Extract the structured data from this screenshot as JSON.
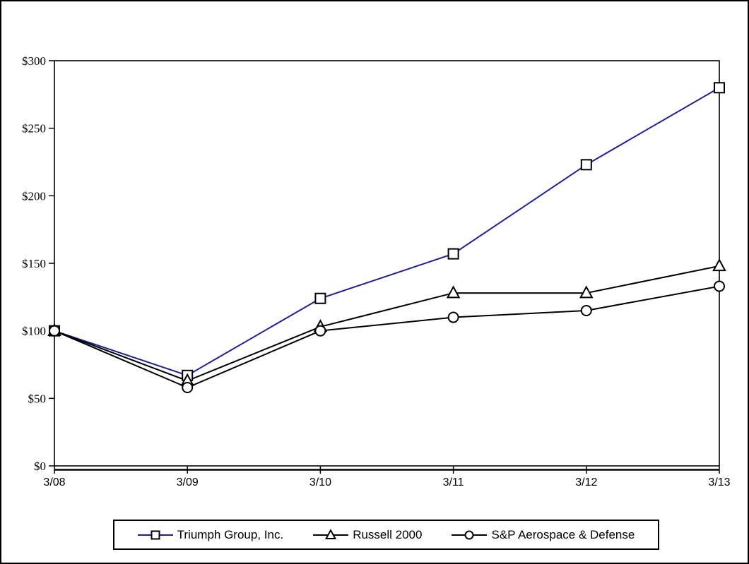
{
  "chart_data": {
    "type": "line",
    "title": "",
    "categories": [
      "3/08",
      "3/09",
      "3/10",
      "3/11",
      "3/12",
      "3/13"
    ],
    "series": [
      {
        "name": "Triumph Group, Inc.",
        "marker": "square",
        "line_color": "#1f1f9c",
        "values": [
          100,
          67,
          124,
          157,
          223,
          280
        ]
      },
      {
        "name": "Russell 2000",
        "marker": "triangle",
        "line_color": "#000000",
        "values": [
          100,
          63,
          103,
          128,
          128,
          148
        ]
      },
      {
        "name": "S&P Aerospace & Defense",
        "marker": "circle",
        "line_color": "#000000",
        "values": [
          100,
          58,
          100,
          110,
          115,
          133
        ]
      }
    ],
    "y_axis": {
      "min": 0,
      "max": 300,
      "tick_step": 50,
      "tick_labels": [
        "$0",
        "$50",
        "$100",
        "$150",
        "$200",
        "$250",
        "$300"
      ]
    },
    "x_axis": {
      "tick_labels": [
        "3/08",
        "3/09",
        "3/10",
        "3/11",
        "3/12",
        "3/13"
      ]
    },
    "legend_position": "bottom",
    "grid": false,
    "marker_fill": "#ffffff",
    "marker_stroke": "#000000",
    "axis_color": "#000000",
    "background_color": "#ffffff"
  }
}
